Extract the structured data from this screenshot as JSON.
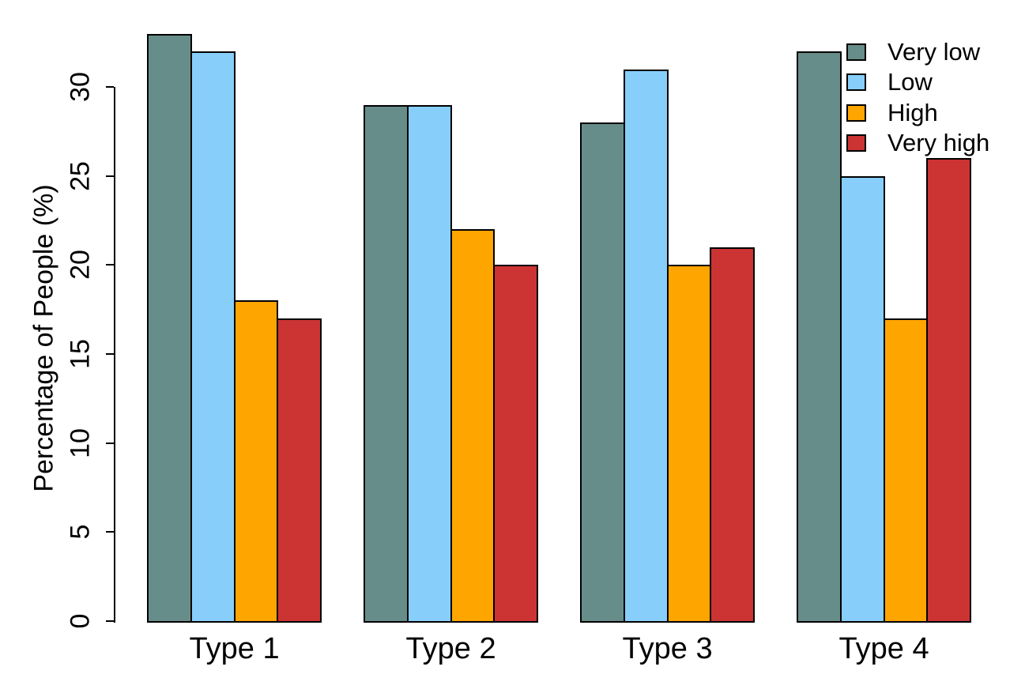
{
  "chart_data": {
    "type": "bar",
    "title": "",
    "xlabel": "",
    "ylabel": "Percentage of People (%)",
    "categories": [
      "Type 1",
      "Type 2",
      "Type 3",
      "Type 4"
    ],
    "series": [
      {
        "name": "Very low",
        "color": "#678D8A",
        "values": [
          33,
          29,
          28,
          32
        ]
      },
      {
        "name": "Low",
        "color": "#87CEFA",
        "values": [
          32,
          29,
          31,
          25
        ]
      },
      {
        "name": "High",
        "color": "#FFA500",
        "values": [
          18,
          22,
          20,
          17
        ]
      },
      {
        "name": "Very high",
        "color": "#CC3333",
        "values": [
          17,
          20,
          21,
          26
        ]
      }
    ],
    "yticks": [
      0,
      5,
      10,
      15,
      20,
      25,
      30
    ],
    "ylim": [
      0,
      33
    ],
    "grid": false,
    "legend_position": "top-right",
    "bar_border_color": "#000000",
    "axis_color": "#000000"
  }
}
